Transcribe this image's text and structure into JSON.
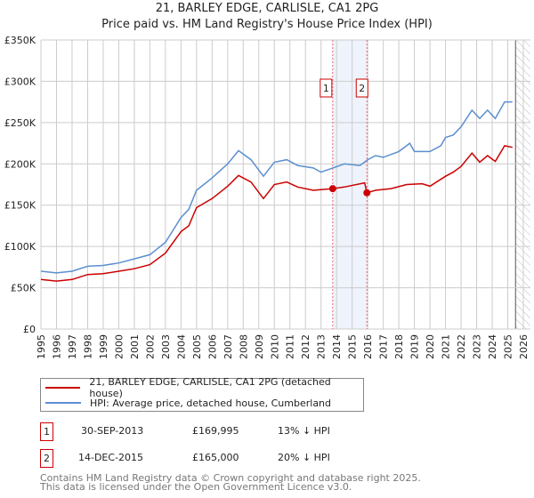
{
  "chart_data": {
    "type": "line",
    "title": "21, BARLEY EDGE, CARLISLE, CA1 2PG",
    "subtitle": "Price paid vs. HM Land Registry's House Price Index (HPI)",
    "xlabel": "",
    "ylabel": "",
    "xlim": [
      1995,
      2026
    ],
    "ylim": [
      0,
      350000
    ],
    "y_ticks": [
      0,
      50000,
      100000,
      150000,
      200000,
      250000,
      300000,
      350000
    ],
    "y_tick_labels": [
      "£0",
      "£50K",
      "£100K",
      "£150K",
      "£200K",
      "£250K",
      "£300K",
      "£350K"
    ],
    "x_tick_labels": [
      "1995",
      "1996",
      "1997",
      "1998",
      "1999",
      "2000",
      "2001",
      "2002",
      "2003",
      "2004",
      "2005",
      "2006",
      "2007",
      "2008",
      "2009",
      "2010",
      "2011",
      "2012",
      "2013",
      "2014",
      "2015",
      "2016",
      "2017",
      "2018",
      "2019",
      "2020",
      "2021",
      "2022",
      "2023",
      "2024",
      "2025",
      "2026"
    ],
    "grid": true,
    "shaded_range": [
      2013.75,
      2015.95
    ],
    "forecast_hatch_from": 2025.5,
    "series": [
      {
        "name": "21, BARLEY EDGE, CARLISLE, CA1 2PG (detached house)",
        "color": "#cc0000",
        "x": [
          1995,
          1996,
          1997,
          1998,
          1999,
          2000,
          2001,
          2002,
          2003,
          2004,
          2004.5,
          2005,
          2006,
          2007,
          2007.7,
          2008.5,
          2009.3,
          2010,
          2010.8,
          2011.5,
          2012.5,
          2013.75,
          2014.5,
          2015.8,
          2015.95,
          2016.5,
          2017.5,
          2018.5,
          2019.5,
          2020,
          2021,
          2021.5,
          2022,
          2022.7,
          2023.2,
          2023.7,
          2024.2,
          2024.8,
          2025.3
        ],
        "y": [
          60000,
          58000,
          60000,
          66000,
          67000,
          70000,
          73000,
          78000,
          92000,
          118000,
          125000,
          147000,
          158000,
          173000,
          186000,
          178000,
          158000,
          175000,
          178000,
          172000,
          168000,
          169995,
          172000,
          177000,
          165000,
          168000,
          170000,
          175000,
          176000,
          173000,
          185000,
          190000,
          197000,
          213000,
          202000,
          210000,
          203000,
          222000,
          220000
        ]
      },
      {
        "name": "HPI: Average price, detached house, Cumberland",
        "color": "#5b8fd0",
        "x": [
          1995,
          1996,
          1997,
          1998,
          1999,
          2000,
          2001,
          2002,
          2003,
          2004,
          2004.5,
          2005,
          2006,
          2007,
          2007.7,
          2008.5,
          2009.3,
          2010,
          2010.8,
          2011.5,
          2012.5,
          2013,
          2013.75,
          2014.5,
          2015.5,
          2016,
          2016.5,
          2017,
          2018,
          2018.7,
          2019,
          2020,
          2020.7,
          2021,
          2021.5,
          2022,
          2022.7,
          2023.2,
          2023.7,
          2024.2,
          2024.8,
          2025.3
        ],
        "y": [
          70000,
          68000,
          70000,
          76000,
          77000,
          80000,
          85000,
          90000,
          105000,
          135000,
          145000,
          168000,
          183000,
          200000,
          216000,
          205000,
          185000,
          202000,
          205000,
          198000,
          195000,
          190000,
          195000,
          200000,
          198000,
          205000,
          210000,
          208000,
          215000,
          225000,
          215000,
          215000,
          222000,
          232000,
          235000,
          245000,
          265000,
          255000,
          265000,
          255000,
          275000,
          275000
        ]
      }
    ],
    "annotations": [
      {
        "label": "1",
        "x": 2013.75,
        "y": 169995
      },
      {
        "label": "2",
        "x": 2015.95,
        "y": 165000
      }
    ]
  },
  "legend": {
    "red": "21, BARLEY EDGE, CARLISLE, CA1 2PG (detached house)",
    "blue": "HPI: Average price, detached house, Cumberland"
  },
  "transactions": [
    {
      "num": "1",
      "date": "30-SEP-2013",
      "price": "£169,995",
      "delta": "13% ↓ HPI"
    },
    {
      "num": "2",
      "date": "14-DEC-2015",
      "price": "£165,000",
      "delta": "20% ↓ HPI"
    }
  ],
  "footer": {
    "line1": "Contains HM Land Registry data © Crown copyright and database right 2025.",
    "line2": "This data is licensed under the Open Government Licence v3.0."
  }
}
